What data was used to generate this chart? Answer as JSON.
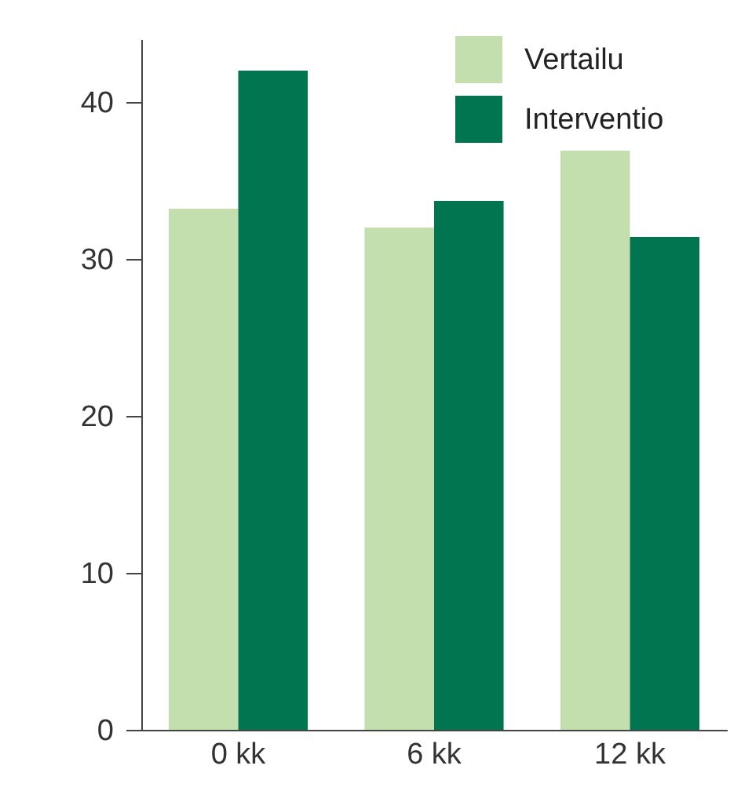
{
  "chart_data": {
    "type": "bar",
    "categories": [
      "0 kk",
      "6 kk",
      "12 kk"
    ],
    "series": [
      {
        "name": "Vertailu",
        "color": "#c2dfad",
        "values": [
          33.2,
          32.0,
          36.9
        ]
      },
      {
        "name": "Interventio",
        "color": "#00754f",
        "values": [
          42.0,
          33.7,
          31.4
        ]
      }
    ],
    "ylim": [
      0,
      44
    ],
    "yticks": [
      0,
      10,
      20,
      30,
      40
    ],
    "legend": "top right",
    "grid": false
  }
}
